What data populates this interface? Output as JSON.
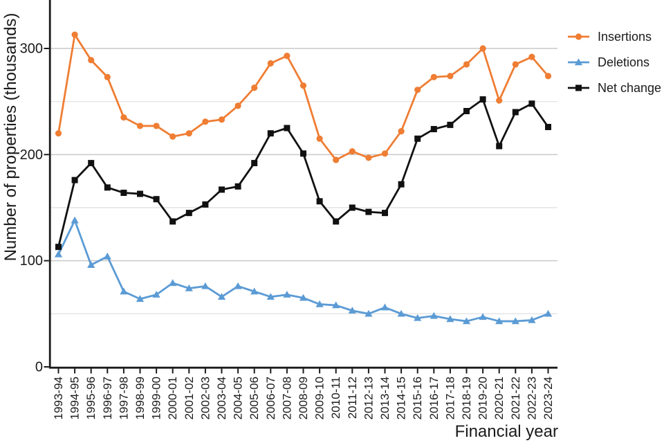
{
  "chart_data": {
    "type": "line",
    "title": "",
    "xlabel": "Financial year",
    "ylabel": "Number of properties (thousands)",
    "categories": [
      "1993-94",
      "1994-95",
      "1995-96",
      "1996-97",
      "1997-98",
      "1998-99",
      "1999-00",
      "2000-01",
      "2001-02",
      "2002-03",
      "2003-04",
      "2004-05",
      "2005-06",
      "2006-07",
      "2007-08",
      "2008-09",
      "2009-10",
      "2010-11",
      "2011-12",
      "2012-13",
      "2013-14",
      "2014-15",
      "2015-16",
      "2016-17",
      "2017-18",
      "2018-19",
      "2019-20",
      "2020-21",
      "2021-22",
      "2022-23",
      "2023-24"
    ],
    "series": [
      {
        "name": "Insertions",
        "marker": "circle",
        "color": "#EF7D33",
        "values": [
          220,
          313,
          289,
          273,
          235,
          227,
          227,
          217,
          220,
          231,
          233,
          246,
          263,
          286,
          293,
          265,
          215,
          195,
          203,
          197,
          201,
          222,
          261,
          273,
          274,
          285,
          300,
          251,
          285,
          292,
          274
        ]
      },
      {
        "name": "Deletions",
        "marker": "triangle",
        "color": "#5B9BD5",
        "values": [
          106,
          138,
          96,
          104,
          71,
          64,
          68,
          79,
          74,
          76,
          66,
          76,
          71,
          66,
          68,
          65,
          59,
          58,
          53,
          50,
          56,
          50,
          46,
          48,
          45,
          43,
          47,
          43,
          43,
          44,
          50
        ]
      },
      {
        "name": "Net change",
        "marker": "square",
        "color": "#111111",
        "values": [
          113,
          176,
          192,
          169,
          164,
          163,
          158,
          137,
          145,
          153,
          167,
          170,
          192,
          220,
          225,
          201,
          156,
          137,
          150,
          146,
          145,
          172,
          215,
          224,
          228,
          241,
          252,
          208,
          240,
          248,
          226
        ]
      }
    ],
    "ylim": [
      0,
      330
    ],
    "yticks_labeled": [
      0,
      100,
      200,
      300
    ],
    "gridlines_major": [
      100,
      200,
      300
    ],
    "gridlines_minor": [
      50,
      150,
      250
    ],
    "grid": "horizontal",
    "legend_position": "right"
  },
  "colors": {
    "background": "#ffffff",
    "axis": "#1a1a1a",
    "text": "#1a1a1a",
    "grid_major": "#c9c9c9",
    "grid_minor": "#e4e4e4"
  }
}
